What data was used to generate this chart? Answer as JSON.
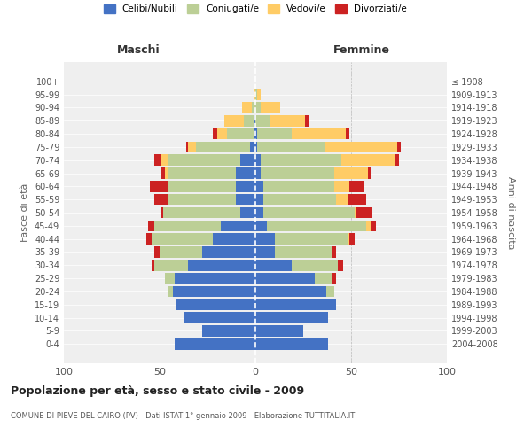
{
  "age_groups": [
    "0-4",
    "5-9",
    "10-14",
    "15-19",
    "20-24",
    "25-29",
    "30-34",
    "35-39",
    "40-44",
    "45-49",
    "50-54",
    "55-59",
    "60-64",
    "65-69",
    "70-74",
    "75-79",
    "80-84",
    "85-89",
    "90-94",
    "95-99",
    "100+"
  ],
  "birth_years": [
    "2004-2008",
    "1999-2003",
    "1994-1998",
    "1989-1993",
    "1984-1988",
    "1979-1983",
    "1974-1978",
    "1969-1973",
    "1964-1968",
    "1959-1963",
    "1954-1958",
    "1949-1953",
    "1944-1948",
    "1939-1943",
    "1934-1938",
    "1929-1933",
    "1924-1928",
    "1919-1923",
    "1914-1918",
    "1909-1913",
    "≤ 1908"
  ],
  "colors": {
    "celibe": "#4472C4",
    "coniugato": "#BCCF96",
    "vedovo": "#FFCC66",
    "divorziato": "#CC2222"
  },
  "maschi": {
    "celibe": [
      42,
      28,
      37,
      41,
      43,
      42,
      35,
      28,
      22,
      18,
      8,
      10,
      10,
      10,
      8,
      3,
      1,
      1,
      0,
      0,
      0
    ],
    "coniugato": [
      0,
      0,
      0,
      0,
      3,
      5,
      18,
      22,
      32,
      35,
      40,
      36,
      36,
      36,
      38,
      28,
      14,
      5,
      2,
      0,
      0
    ],
    "vedovo": [
      0,
      0,
      0,
      0,
      0,
      0,
      0,
      0,
      0,
      0,
      0,
      0,
      0,
      1,
      3,
      4,
      5,
      10,
      5,
      1,
      0
    ],
    "divorziato": [
      0,
      0,
      0,
      0,
      0,
      0,
      1,
      3,
      3,
      3,
      1,
      7,
      9,
      2,
      4,
      1,
      2,
      0,
      0,
      0,
      0
    ]
  },
  "femmine": {
    "nubile": [
      38,
      25,
      38,
      42,
      37,
      31,
      19,
      10,
      10,
      6,
      4,
      4,
      4,
      3,
      3,
      1,
      1,
      0,
      0,
      0,
      0
    ],
    "coniugata": [
      0,
      0,
      0,
      0,
      4,
      9,
      24,
      30,
      38,
      52,
      48,
      38,
      37,
      38,
      42,
      35,
      18,
      8,
      3,
      1,
      0
    ],
    "vedova": [
      0,
      0,
      0,
      0,
      0,
      0,
      0,
      0,
      1,
      2,
      1,
      6,
      8,
      18,
      28,
      38,
      28,
      18,
      10,
      2,
      0
    ],
    "divorziata": [
      0,
      0,
      0,
      0,
      0,
      2,
      3,
      2,
      3,
      3,
      8,
      10,
      8,
      1,
      2,
      2,
      2,
      2,
      0,
      0,
      0
    ]
  },
  "title": "Popolazione per età, sesso e stato civile - 2009",
  "subtitle": "COMUNE DI PIEVE DEL CAIRO (PV) - Dati ISTAT 1° gennaio 2009 - Elaborazione TUTTITALIA.IT",
  "xlabel_left": "Maschi",
  "xlabel_right": "Femmine",
  "ylabel_left": "Fasce di età",
  "ylabel_right": "Anni di nascita",
  "legend_labels": [
    "Celibi/Nubili",
    "Coniugati/e",
    "Vedovi/e",
    "Divorziati/e"
  ],
  "xlim": 100,
  "bg_color": "#FFFFFF",
  "plot_bg": "#EFEFEF",
  "grid_color": "#CCCCCC",
  "bar_height": 0.85
}
